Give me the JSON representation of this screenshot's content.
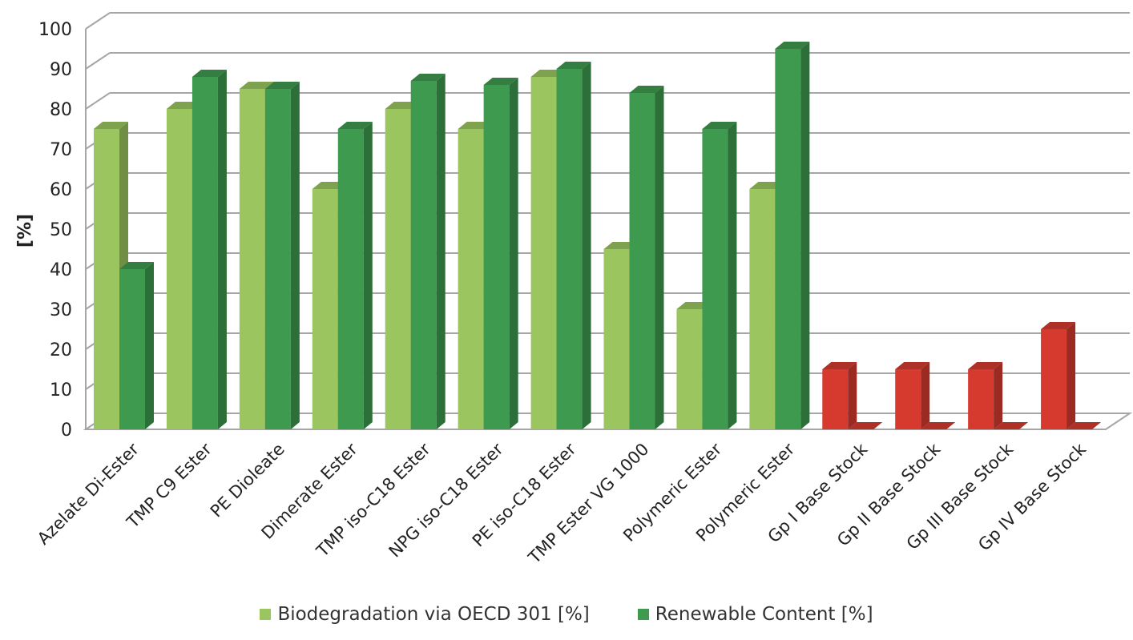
{
  "chart_data": {
    "type": "bar",
    "title": "",
    "ylabel": "[%]",
    "xlabel": "",
    "ylim": [
      0,
      100
    ],
    "yticks": [
      0,
      10,
      20,
      30,
      40,
      50,
      60,
      70,
      80,
      90,
      100
    ],
    "grid": true,
    "legend_position": "bottom",
    "categories": [
      "Azelate Di-Ester",
      "TMP C9 Ester",
      "PE Dioleate",
      "Dimerate Ester",
      "TMP iso-C18 Ester",
      "NPG iso-C18 Ester",
      "PE iso-C18 Ester",
      "TMP Ester VG 1000",
      "Polymeric Ester",
      "Polymeric Ester",
      "Gp I Base Stock",
      "Gp II Base Stock",
      "Gp III Base Stock",
      "Gp IV Base Stock"
    ],
    "series": [
      {
        "name": "Biodegradation via OECD 301 [%]",
        "color": "#9BC55F",
        "values": [
          75,
          80,
          85,
          60,
          80,
          75,
          88,
          45,
          30,
          60,
          15,
          15,
          15,
          25
        ]
      },
      {
        "name": "Renewable Content [%]",
        "color": "#3E9A4E",
        "values": [
          40,
          88,
          85,
          75,
          87,
          86,
          90,
          84,
          75,
          95,
          0,
          0,
          0,
          0
        ]
      }
    ],
    "highlight_color": "#D63A2F",
    "highlight_categories": [
      "Gp I Base Stock",
      "Gp II Base Stock",
      "Gp III Base Stock",
      "Gp IV Base Stock"
    ]
  }
}
